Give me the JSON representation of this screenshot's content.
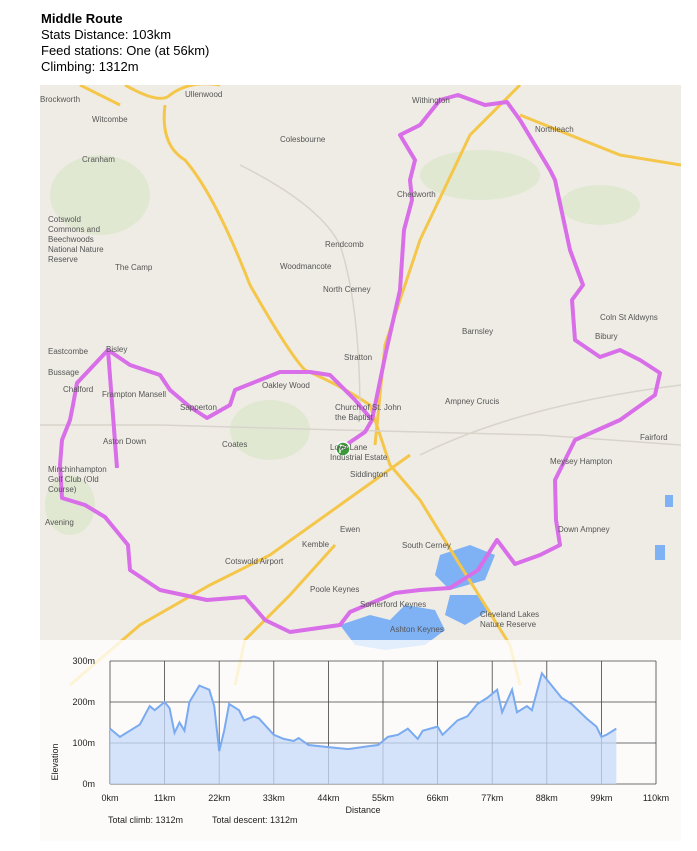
{
  "route": {
    "title": "Middle Route",
    "distance": "Stats Distance: 103km",
    "feed": "Feed stations: One (at 56km)",
    "climbing": "Climbing: 1312m"
  },
  "map": {
    "route_color": "#d86ee8",
    "road_color": "#f4c64a",
    "water_color": "#7fb2f5",
    "start_marker": "start-flag-icon",
    "labels": [
      "Brockworth",
      "Witcombe",
      "Ullenwood",
      "Cranham",
      "Cotswold Commons and Beechwoods National Nature Reserve",
      "The Camp",
      "Bisley",
      "Eastcombe",
      "Bussage",
      "Chalford",
      "Frampton Mansell",
      "Oakley Wood",
      "Sapperton",
      "Aston Down",
      "Minchinhampton Golf Club (Old Course)",
      "Avening",
      "Coates",
      "Church of St. John the Baptist",
      "Love Lane Industrial Estate",
      "Siddington",
      "Cotswold Airport",
      "Kemble",
      "Ewen",
      "Poole Keynes",
      "Somerford Keynes",
      "South Cerney",
      "Cleveland Lakes Nature Reserve",
      "Ashton Keynes",
      "Colesbourne",
      "Chedworth",
      "Rendcomb",
      "Woodmancote",
      "North Cerney",
      "Withington",
      "Northleach",
      "Barnsley",
      "Ampney Crucis",
      "Meysey Hampton",
      "Fairford",
      "Down Ampney",
      "Coln St Aldwyns",
      "Bibury",
      "Stratton"
    ]
  },
  "elevation": {
    "y_label": "Elevation",
    "x_label": "Distance",
    "total_climb": "Total climb: 1312m",
    "total_descent": "Total descent: 1312m",
    "line_color": "#7aaaf0",
    "fill_color": "#c7dbfa"
  },
  "chart_data": {
    "type": "area",
    "xlabel": "Distance",
    "ylabel": "Elevation",
    "xlim": [
      0,
      110
    ],
    "ylim": [
      0,
      300
    ],
    "x_ticks": [
      "0km",
      "11km",
      "22km",
      "33km",
      "44km",
      "55km",
      "66km",
      "77km",
      "88km",
      "99km",
      "110km"
    ],
    "y_ticks": [
      "0m",
      "100m",
      "200m",
      "300m"
    ],
    "grid": true,
    "x": [
      0,
      2,
      4,
      6,
      8,
      9,
      11,
      12,
      13,
      14,
      15,
      16,
      18,
      20,
      21,
      22,
      23,
      24,
      26,
      27,
      29,
      30,
      33,
      35,
      37,
      38,
      40,
      44,
      48,
      52,
      54,
      56,
      58,
      60,
      62,
      63,
      66,
      67,
      70,
      72,
      74,
      76,
      78,
      79,
      81,
      82,
      84,
      85,
      87,
      89,
      91,
      93,
      96,
      98,
      99,
      100,
      102
    ],
    "y": [
      135,
      115,
      130,
      145,
      190,
      180,
      200,
      185,
      125,
      150,
      130,
      200,
      240,
      230,
      190,
      80,
      130,
      195,
      180,
      155,
      165,
      160,
      120,
      110,
      105,
      112,
      95,
      90,
      85,
      92,
      95,
      115,
      120,
      135,
      110,
      130,
      140,
      120,
      155,
      165,
      195,
      210,
      230,
      175,
      230,
      175,
      190,
      180,
      270,
      240,
      210,
      195,
      160,
      140,
      115,
      120,
      135
    ]
  }
}
